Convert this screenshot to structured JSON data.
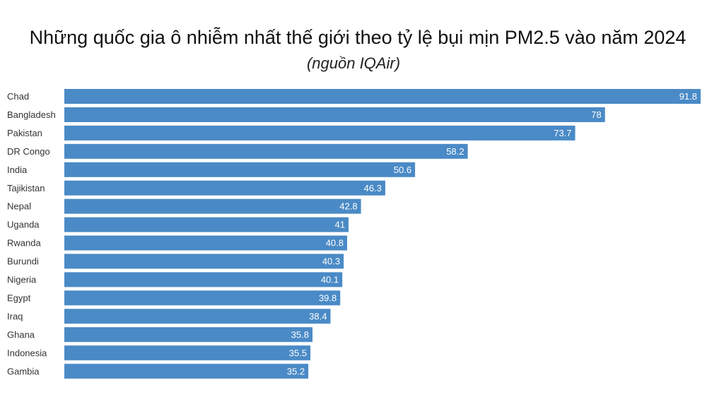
{
  "chart_data": {
    "type": "bar",
    "orientation": "horizontal",
    "title": "Những quốc gia ô nhiễm nhất thế giới theo tỷ lệ bụi mịn PM2.5 vào năm 2024",
    "subtitle": "(nguồn IQAir)",
    "categories": [
      "Chad",
      "Bangladesh",
      "Pakistan",
      "DR Congo",
      "India",
      "Tajikistan",
      "Nepal",
      "Uganda",
      "Rwanda",
      "Burundi",
      "Nigeria",
      "Egypt",
      "Iraq",
      "Ghana",
      "Indonesia",
      "Gambia"
    ],
    "values": [
      91.8,
      78,
      73.7,
      58.2,
      50.6,
      46.3,
      42.8,
      41,
      40.8,
      40.3,
      40.1,
      39.8,
      38.4,
      35.8,
      35.5,
      35.2
    ],
    "value_labels": [
      "91.8",
      "78",
      "73.7",
      "58.2",
      "50.6",
      "46.3",
      "42.8",
      "41",
      "40.8",
      "40.3",
      "40.1",
      "39.8",
      "38.4",
      "35.8",
      "35.5",
      "35.2"
    ],
    "xlim": [
      0,
      91.8
    ],
    "bar_color": "#4a8ac6",
    "grid": false,
    "legend": "none"
  }
}
